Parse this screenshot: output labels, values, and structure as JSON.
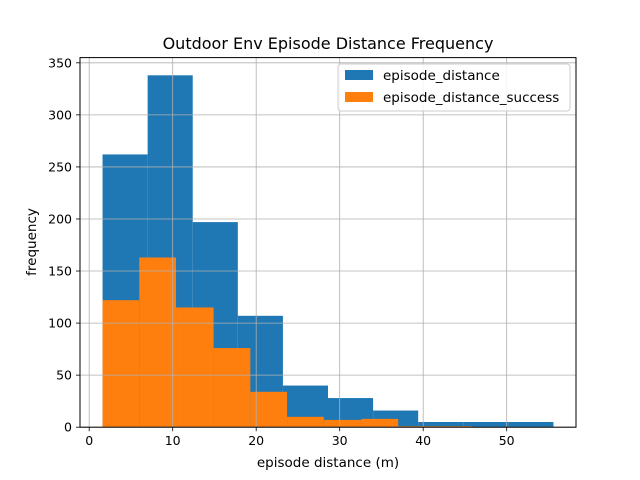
{
  "chart_data": {
    "type": "bar",
    "title": "Outdoor Env Episode Distance Frequency",
    "xlabel": "episode distance (m)",
    "ylabel": "frequency",
    "xlim": [
      -1.1,
      58.3
    ],
    "ylim": [
      0,
      355
    ],
    "xticks": [
      0,
      10,
      20,
      30,
      40,
      50
    ],
    "yticks": [
      0,
      50,
      100,
      150,
      200,
      250,
      300,
      350
    ],
    "grid": true,
    "legend_position": "top-right",
    "series": [
      {
        "name": "episode_distance",
        "color": "#1f77b4",
        "bins": [
          {
            "x0": 1.6,
            "x1": 7.0,
            "value": 262
          },
          {
            "x0": 7.0,
            "x1": 12.4,
            "value": 338
          },
          {
            "x0": 12.4,
            "x1": 17.8,
            "value": 197
          },
          {
            "x0": 17.8,
            "x1": 23.2,
            "value": 107
          },
          {
            "x0": 23.2,
            "x1": 28.6,
            "value": 40
          },
          {
            "x0": 28.6,
            "x1": 34.0,
            "value": 28
          },
          {
            "x0": 34.0,
            "x1": 39.4,
            "value": 16
          },
          {
            "x0": 39.4,
            "x1": 44.8,
            "value": 5
          },
          {
            "x0": 44.8,
            "x1": 50.2,
            "value": 5
          },
          {
            "x0": 50.2,
            "x1": 55.6,
            "value": 5
          }
        ]
      },
      {
        "name": "episode_distance_success",
        "color": "#ff7f0e",
        "bins": [
          {
            "x0": 1.6,
            "x1": 6.0,
            "value": 122
          },
          {
            "x0": 6.0,
            "x1": 10.4,
            "value": 163
          },
          {
            "x0": 10.4,
            "x1": 14.9,
            "value": 115
          },
          {
            "x0": 14.9,
            "x1": 19.3,
            "value": 76
          },
          {
            "x0": 19.3,
            "x1": 23.7,
            "value": 34
          },
          {
            "x0": 23.7,
            "x1": 28.1,
            "value": 10
          },
          {
            "x0": 28.1,
            "x1": 32.6,
            "value": 7
          },
          {
            "x0": 32.6,
            "x1": 37.0,
            "value": 8
          },
          {
            "x0": 37.0,
            "x1": 41.4,
            "value": 1
          },
          {
            "x0": 41.4,
            "x1": 45.8,
            "value": 1
          }
        ]
      }
    ]
  }
}
